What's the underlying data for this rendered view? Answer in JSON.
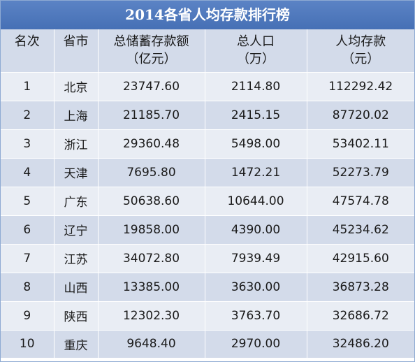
{
  "title": "2014各省人均存款排行榜",
  "columns": [
    {
      "line1": "名次",
      "line2": ""
    },
    {
      "line1": "省市",
      "line2": ""
    },
    {
      "line1": "总储蓄存款额",
      "line2": "（亿元）"
    },
    {
      "line1": "总人口",
      "line2": "（万）"
    },
    {
      "line1": "人均存款",
      "line2": "（元）"
    }
  ],
  "rows": [
    {
      "rank": "1",
      "region": "北京",
      "total_deposits": "23747.60",
      "population": "2114.80",
      "per_capita": "112292.42"
    },
    {
      "rank": "2",
      "region": "上海",
      "total_deposits": "21185.70",
      "population": "2415.15",
      "per_capita": "87720.02"
    },
    {
      "rank": "3",
      "region": "浙江",
      "total_deposits": "29360.48",
      "population": "5498.00",
      "per_capita": "53402.11"
    },
    {
      "rank": "4",
      "region": "天津",
      "total_deposits": "7695.80",
      "population": "1472.21",
      "per_capita": "52273.79"
    },
    {
      "rank": "5",
      "region": "广东",
      "total_deposits": "50638.60",
      "population": "10644.00",
      "per_capita": "47574.78"
    },
    {
      "rank": "6",
      "region": "辽宁",
      "total_deposits": "19858.00",
      "population": "4390.00",
      "per_capita": "45234.62"
    },
    {
      "rank": "7",
      "region": "江苏",
      "total_deposits": "34072.80",
      "population": "7939.49",
      "per_capita": "42915.60"
    },
    {
      "rank": "8",
      "region": "山西",
      "total_deposits": "13385.00",
      "population": "3630.00",
      "per_capita": "36873.28"
    },
    {
      "rank": "9",
      "region": "陕西",
      "total_deposits": "12302.30",
      "population": "3763.70",
      "per_capita": "32686.72"
    },
    {
      "rank": "10",
      "region": "重庆",
      "total_deposits": "9648.40",
      "population": "2970.00",
      "per_capita": "32486.20"
    }
  ]
}
